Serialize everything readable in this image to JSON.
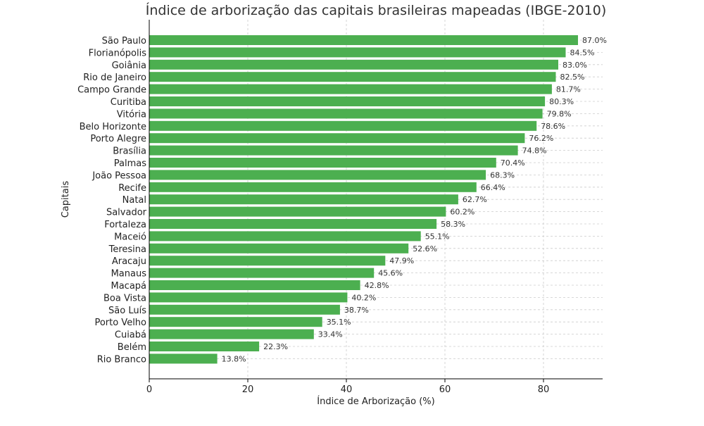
{
  "chart_data": {
    "type": "bar",
    "orientation": "horizontal",
    "title": "Índice de arborização das capitais brasileiras mapeadas (IBGE-2010)",
    "xlabel": "Índice de Arborização (%)",
    "ylabel": "Capitais",
    "xlim": [
      0,
      92
    ],
    "xticks": [
      0,
      20,
      40,
      60,
      80
    ],
    "grid": true,
    "bar_color": "#4caf50",
    "value_suffix": "%",
    "categories": [
      "São Paulo",
      "Florianópolis",
      "Goiânia",
      "Rio de Janeiro",
      "Campo Grande",
      "Curitiba",
      "Vitória",
      "Belo Horizonte",
      "Porto Alegre",
      "Brasília",
      "Palmas",
      "João Pessoa",
      "Recife",
      "Natal",
      "Salvador",
      "Fortaleza",
      "Maceió",
      "Teresina",
      "Aracaju",
      "Manaus",
      "Macapá",
      "Boa Vista",
      "São Luís",
      "Porto Velho",
      "Cuiabá",
      "Belém",
      "Rio Branco"
    ],
    "values": [
      87.0,
      84.5,
      83.0,
      82.5,
      81.7,
      80.3,
      79.8,
      78.6,
      76.2,
      74.8,
      70.4,
      68.3,
      66.4,
      62.7,
      60.2,
      58.3,
      55.1,
      52.6,
      47.9,
      45.6,
      42.8,
      40.2,
      38.7,
      35.1,
      33.4,
      22.3,
      13.8
    ]
  }
}
